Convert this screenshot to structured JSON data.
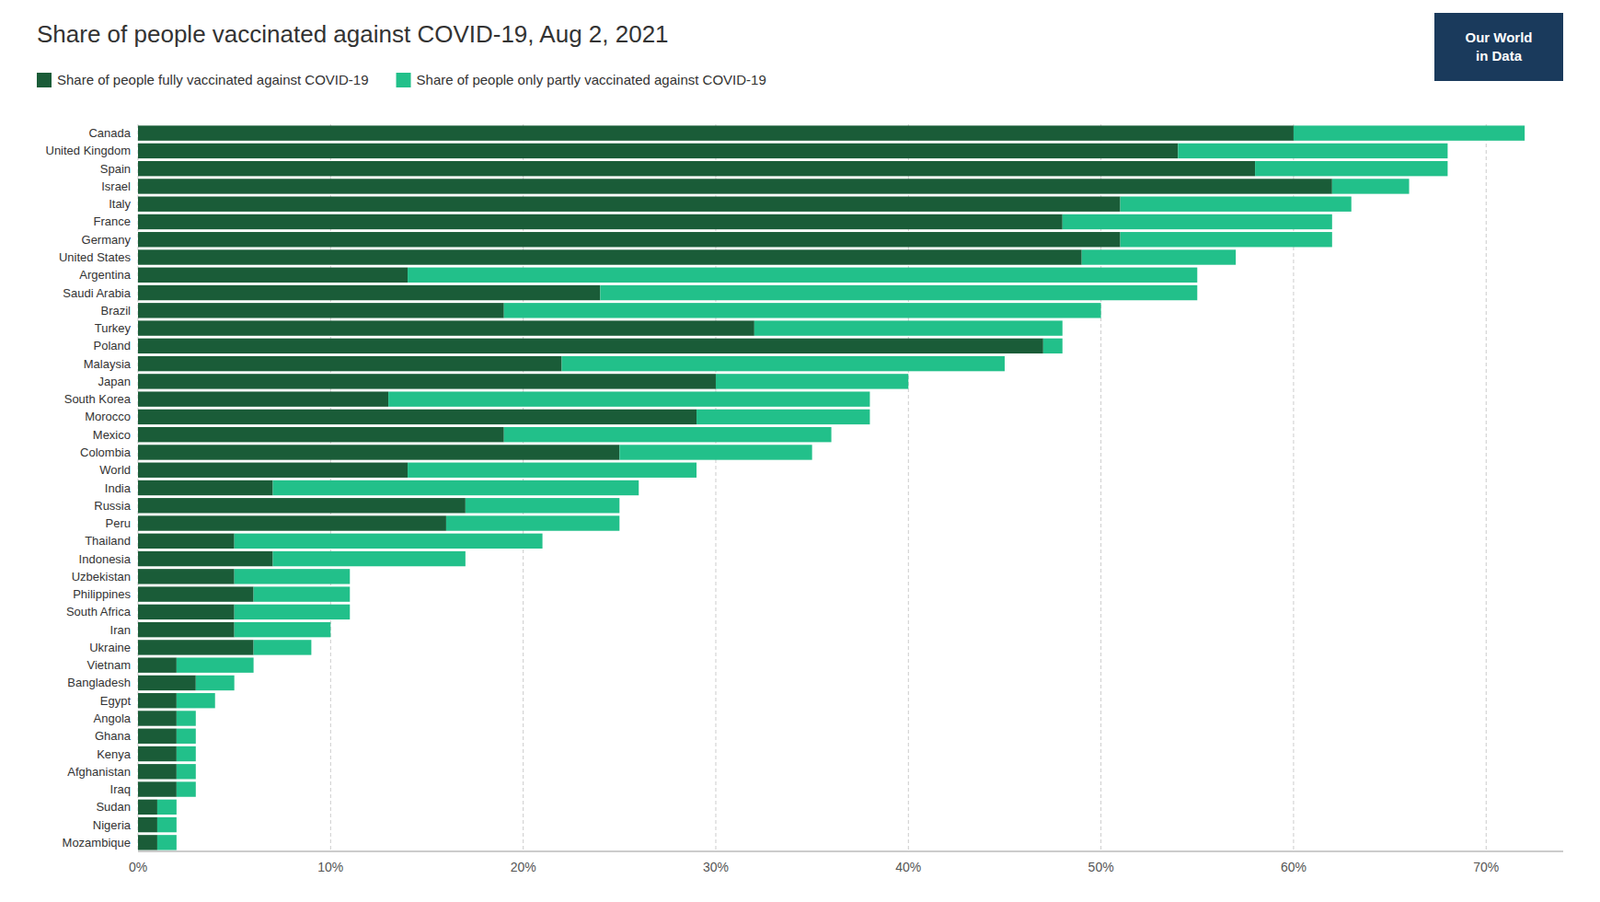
{
  "chart_data": {
    "type": "bar",
    "orientation": "horizontal",
    "stacked": true,
    "grid": true,
    "legend": "upper left",
    "title": "Share of people vaccinated against COVID-19, Aug 2, 2021",
    "categories": [
      "Canada",
      "United Kingdom",
      "Spain",
      "Israel",
      "Italy",
      "France",
      "Germany",
      "United States",
      "Argentina",
      "Saudi Arabia",
      "Brazil",
      "Turkey",
      "Poland",
      "Malaysia",
      "Japan",
      "South Korea",
      "Morocco",
      "Mexico",
      "Colombia",
      "World",
      "India",
      "Russia",
      "Peru",
      "Thailand",
      "Indonesia",
      "Uzbekistan",
      "Philippines",
      "South Africa",
      "Iran",
      "Ukraine",
      "Vietnam",
      "Bangladesh",
      "Egypt",
      "Angola",
      "Ghana",
      "Kenya",
      "Afghanistan",
      "Iraq",
      "Sudan",
      "Nigeria",
      "Mozambique"
    ],
    "series": [
      {
        "name": "Share of people fully vaccinated against COVID-19",
        "color": "#1a5c38",
        "values": [
          60,
          54,
          58,
          62,
          51,
          48,
          51,
          49,
          14,
          24,
          19,
          32,
          47,
          22,
          30,
          13,
          29,
          19,
          25,
          14,
          7,
          17,
          16,
          5,
          7,
          5,
          6,
          5,
          5,
          6,
          2,
          3,
          2,
          2,
          2,
          2,
          2,
          2,
          1,
          1,
          1
        ]
      },
      {
        "name": "Share of people only partly vaccinated against COVID-19",
        "color": "#22c08a",
        "values": [
          12,
          14,
          10,
          4,
          12,
          14,
          11,
          8,
          41,
          31,
          31,
          16,
          1,
          23,
          10,
          25,
          9,
          17,
          10,
          15,
          19,
          8,
          9,
          16,
          10,
          6,
          5,
          6,
          5,
          3,
          4,
          2,
          2,
          1,
          1,
          1,
          1,
          1,
          1,
          1,
          1
        ]
      }
    ],
    "xlim": [
      0,
      74
    ],
    "xticks": [
      {
        "value": 0,
        "label": "0%"
      },
      {
        "value": 10,
        "label": "10%"
      },
      {
        "value": 20,
        "label": "20%"
      },
      {
        "value": 30,
        "label": "30%"
      },
      {
        "value": 40,
        "label": "40%"
      },
      {
        "value": 50,
        "label": "50%"
      },
      {
        "value": 60,
        "label": "60%"
      },
      {
        "value": 70,
        "label": "70%"
      }
    ],
    "annotations": [
      {
        "text": "Our World\nin Data",
        "color": "#1a3a5c"
      }
    ]
  }
}
